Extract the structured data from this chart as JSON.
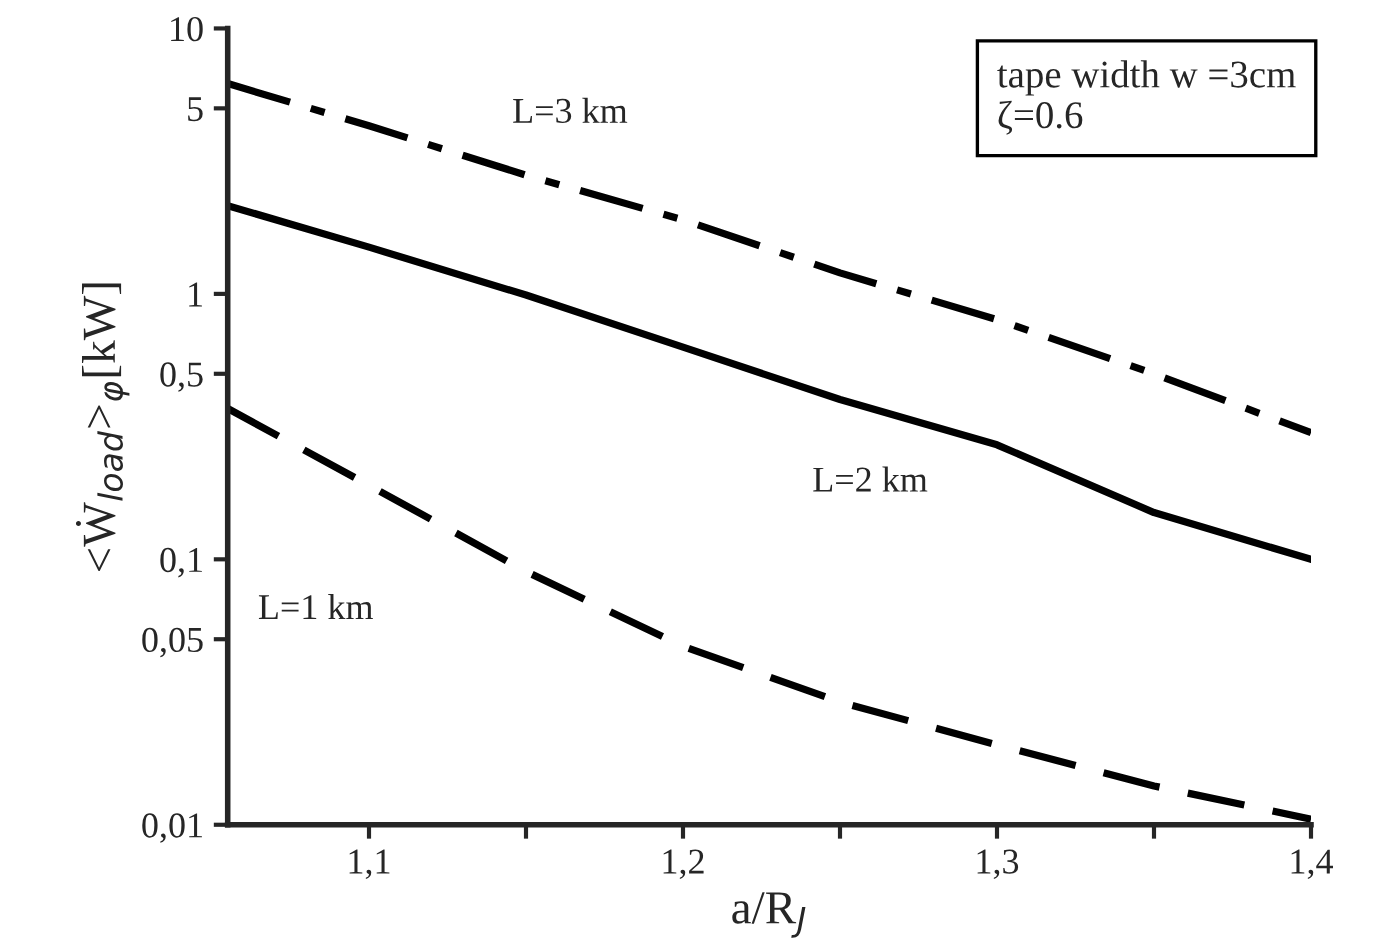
{
  "chart_data": {
    "type": "line",
    "xlabel": "a/R$_{J}$",
    "ylabel": "<Ẇ$_{load}$>$_{φ}$[kW]",
    "x": [
      1.055,
      1.1,
      1.15,
      1.2,
      1.25,
      1.3,
      1.35,
      1.4
    ],
    "series": [
      {
        "name": "L=3 km",
        "color": "#000000",
        "line_style": "dashdot",
        "values": [
          6.2,
          4.3,
          2.8,
          1.9,
          1.2,
          0.8,
          0.5,
          0.3
        ]
      },
      {
        "name": "L=2 km",
        "color": "#000000",
        "line_style": "solid",
        "values": [
          2.15,
          1.5,
          0.99,
          0.63,
          0.4,
          0.27,
          0.15,
          0.1
        ]
      },
      {
        "name": "L=1 km",
        "color": "#000000",
        "line_style": "dashed",
        "values": [
          0.37,
          0.19,
          0.09,
          0.047,
          0.029,
          0.02,
          0.014,
          0.0105
        ]
      }
    ],
    "log": "y",
    "xlim": [
      1.055,
      1.4
    ],
    "xticks": [
      {
        "value": 1.1,
        "label": "1,1"
      },
      {
        "value": 1.15,
        "label": null
      },
      {
        "value": 1.2,
        "label": "1,2"
      },
      {
        "value": 1.25,
        "label": null
      },
      {
        "value": 1.3,
        "label": "1,3"
      },
      {
        "value": 1.35,
        "label": null
      },
      {
        "value": 1.4,
        "label": "1,4"
      }
    ],
    "ylim": [
      0.01,
      10
    ],
    "yticks": [
      {
        "value": 0.01,
        "label": "0,01"
      },
      {
        "value": 0.05,
        "label": "0,05"
      },
      {
        "value": 0.1,
        "label": "0,1"
      },
      {
        "value": 0.5,
        "label": "0,5"
      },
      1,
      5,
      10
    ],
    "grid": false,
    "legend": false,
    "annotations": [
      "tape width w =3cm\nζ=0.6"
    ]
  }
}
